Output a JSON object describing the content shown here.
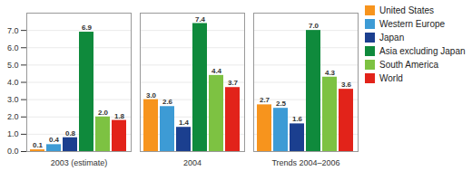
{
  "chart_data": {
    "type": "bar",
    "categories": [
      "2003 (estimate)",
      "2004",
      "Trends 2004–2006"
    ],
    "series": [
      {
        "name": "United States",
        "color": "#f7941d",
        "values": [
          0.1,
          3.0,
          2.7
        ],
        "value_labels": [
          "0.1",
          "3.0",
          "2.7"
        ]
      },
      {
        "name": "Western Europe",
        "color": "#3d9bd5",
        "values": [
          0.4,
          2.6,
          2.5
        ],
        "value_labels": [
          "0.4",
          "2.6",
          "2.5"
        ]
      },
      {
        "name": "Japan",
        "color": "#1b3f8f",
        "values": [
          0.8,
          1.4,
          1.6
        ],
        "value_labels": [
          "0.8",
          "1.4",
          "1.6"
        ]
      },
      {
        "name": "Asia excluding Japan",
        "color": "#0f8a3c",
        "values": [
          6.9,
          7.4,
          7.0
        ],
        "value_labels": [
          "6.9",
          "7.4",
          "7.0"
        ]
      },
      {
        "name": "South America",
        "color": "#7dc242",
        "values": [
          2.0,
          4.4,
          4.3
        ],
        "value_labels": [
          "2.0",
          "4.4",
          "4.3"
        ]
      },
      {
        "name": "World",
        "color": "#e2231a",
        "values": [
          1.8,
          3.7,
          3.6
        ],
        "value_labels": [
          "1.8",
          "3.7",
          "3.6"
        ]
      }
    ],
    "ylim": [
      0,
      8
    ],
    "yticks": [
      {
        "value": 0,
        "label": "0.0"
      },
      {
        "value": 1,
        "label": "1.0"
      },
      {
        "value": 2,
        "label": "2.0"
      },
      {
        "value": 3,
        "label": "3.0"
      },
      {
        "value": 4,
        "label": "4.0"
      },
      {
        "value": 5,
        "label": "5.0"
      },
      {
        "value": 6,
        "label": "6.0"
      },
      {
        "value": 7,
        "label": "7.0"
      }
    ],
    "grid": true,
    "data_labels": true,
    "legend": "right"
  }
}
